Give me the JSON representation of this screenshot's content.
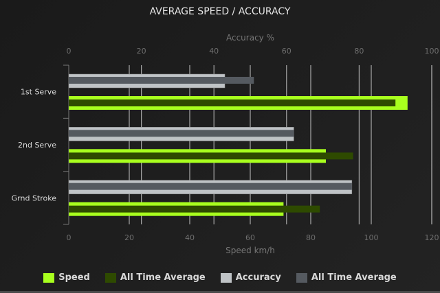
{
  "chart_data": {
    "type": "bar",
    "orientation": "horizontal",
    "title": "AVERAGE SPEED / ACCURACY",
    "categories": [
      "1st Serve",
      "2nd Serve",
      "Grnd Stroke"
    ],
    "top_axis": {
      "label": "Accuracy %",
      "range": [
        0,
        100
      ],
      "ticks": [
        "0",
        "20",
        "40",
        "60",
        "80",
        "100"
      ]
    },
    "bottom_axis": {
      "label": "Speed km/h",
      "range": [
        0,
        120
      ],
      "ticks": [
        "0",
        "20",
        "40",
        "60",
        "80",
        "100",
        "120"
      ]
    },
    "grid": true,
    "legend_position": "bottom",
    "series": [
      {
        "name": "Speed",
        "axis": "bottom",
        "color": "#a8ff1e",
        "values": [
          112,
          85,
          71
        ]
      },
      {
        "name": "All Time Average",
        "axis": "bottom",
        "color": "#2e4a00",
        "values": [
          108,
          94,
          83
        ]
      },
      {
        "name": "Accuracy",
        "axis": "top",
        "color": "#bfc3c6",
        "values": [
          43,
          62,
          78
        ]
      },
      {
        "name": "All Time Average",
        "axis": "top",
        "color": "#555a60",
        "values": [
          51,
          62,
          78
        ]
      }
    ]
  }
}
